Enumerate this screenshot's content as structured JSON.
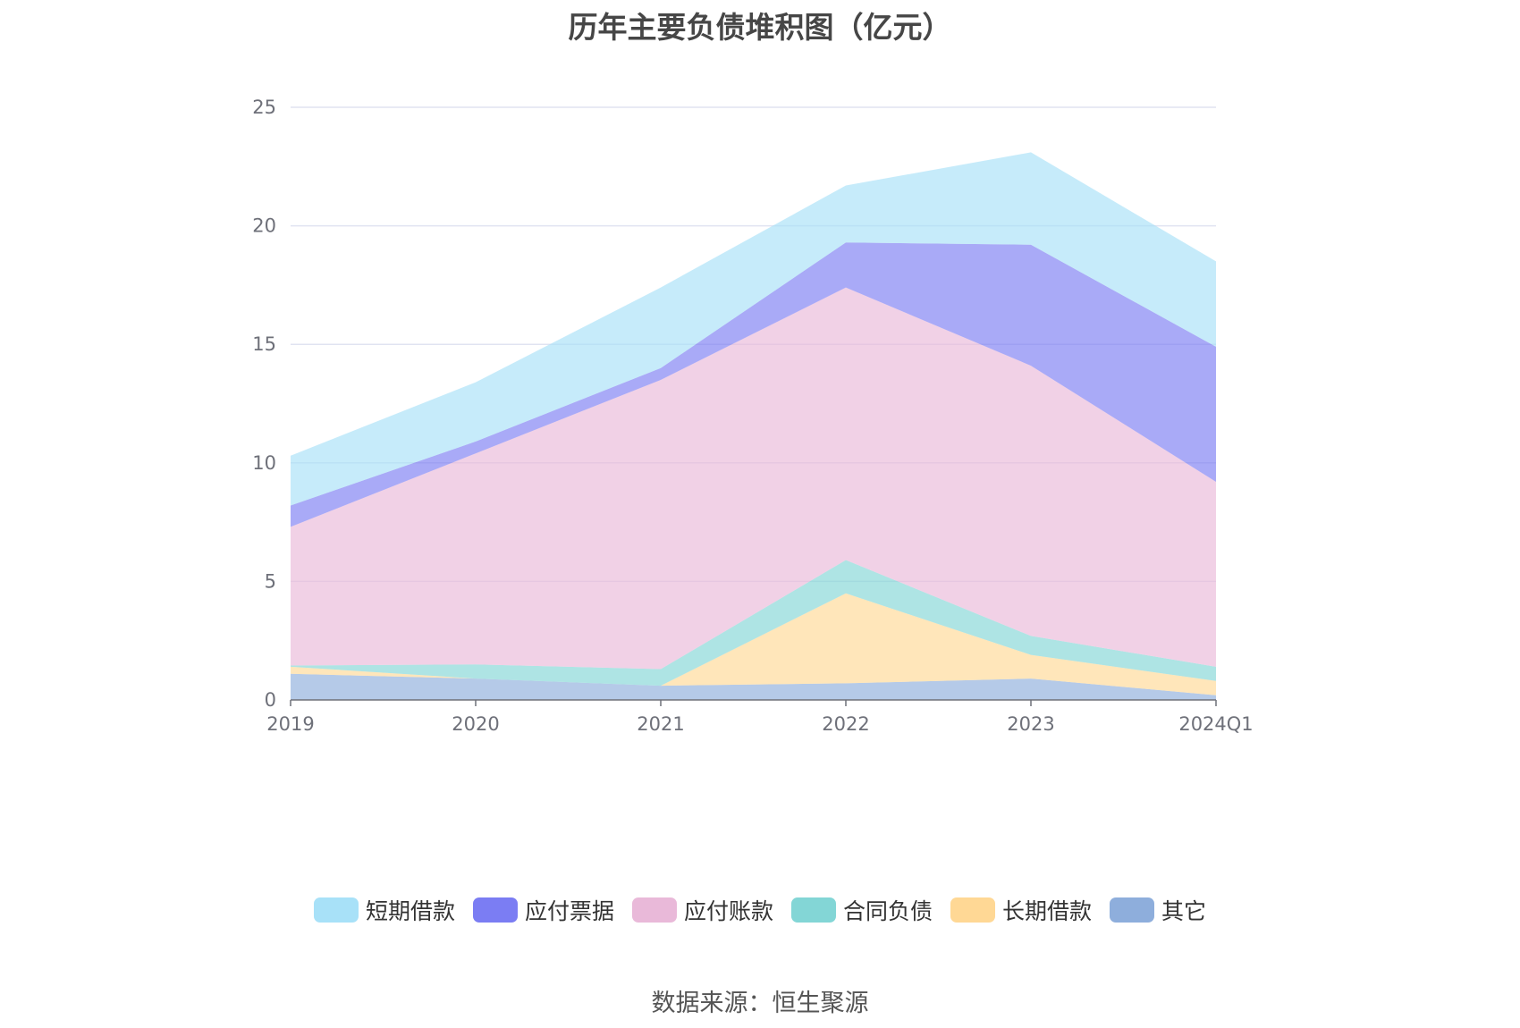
{
  "title": "历年主要负债堆积图（亿元）",
  "source": "数据来源：恒生聚源",
  "chart_data": {
    "type": "area",
    "stacked": true,
    "title": "历年主要负债堆积图（亿元）",
    "categories": [
      "2019",
      "2020",
      "2021",
      "2022",
      "2023",
      "2024Q1"
    ],
    "ylim": [
      0,
      25
    ],
    "yticks": [
      0,
      5,
      10,
      15,
      20,
      25
    ],
    "grid": true,
    "legend_position": "bottom",
    "series": [
      {
        "name": "其它",
        "color": "#8eaedc",
        "values": [
          1.1,
          0.9,
          0.6,
          0.7,
          0.9,
          0.2
        ]
      },
      {
        "name": "长期借款",
        "color": "#ffd895",
        "values": [
          0.3,
          0.0,
          0.0,
          3.8,
          1.0,
          0.6
        ]
      },
      {
        "name": "合同负债",
        "color": "#83d6d6",
        "values": [
          0.05,
          0.6,
          0.7,
          1.4,
          0.8,
          0.6
        ]
      },
      {
        "name": "应付账款",
        "color": "#e9b9d9",
        "values": [
          5.85,
          8.9,
          12.2,
          11.5,
          11.4,
          7.8
        ]
      },
      {
        "name": "应付票据",
        "color": "#7b7df3",
        "values": [
          0.9,
          0.5,
          0.5,
          1.9,
          5.1,
          5.7
        ]
      },
      {
        "name": "短期借款",
        "color": "#a8e1f8",
        "values": [
          2.1,
          2.5,
          3.4,
          2.4,
          3.9,
          3.6
        ]
      }
    ],
    "legend_order": [
      "短期借款",
      "应付票据",
      "应付账款",
      "合同负债",
      "长期借款",
      "其它"
    ]
  }
}
